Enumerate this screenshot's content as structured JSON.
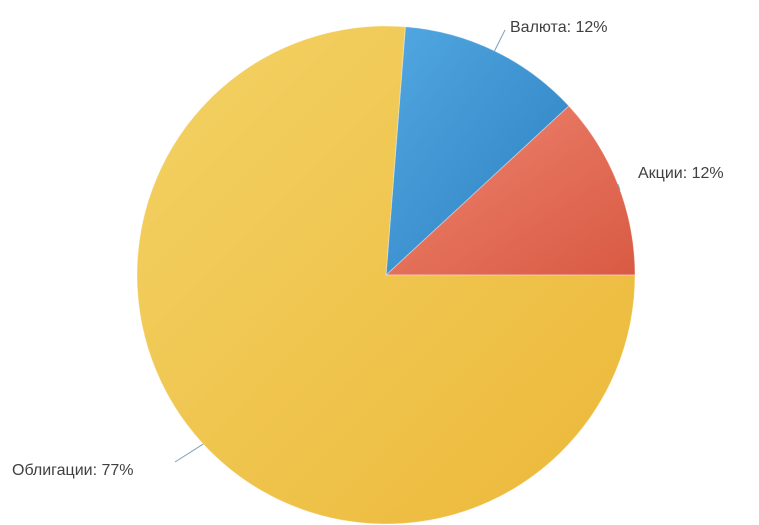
{
  "chart_data": {
    "type": "pie",
    "title": "",
    "legend": "none",
    "slices": [
      {
        "label": "Акции",
        "value": 12,
        "display": "Акции: 12%",
        "color": "#e8684f",
        "color_light": "#ee8570",
        "color_dark": "#d95a43",
        "label_side": "right"
      },
      {
        "label": "Валюта",
        "value": 12,
        "display": "Валюта: 12%",
        "color": "#3a92d0",
        "color_light": "#52a8e2",
        "color_dark": "#2b7fbf",
        "label_side": "right"
      },
      {
        "label": "Облигации",
        "value": 77,
        "display": "Облигации: 77%",
        "color": "#f0c44d",
        "color_light": "#f3d265",
        "color_dark": "#ecb838",
        "label_side": "left"
      }
    ]
  }
}
